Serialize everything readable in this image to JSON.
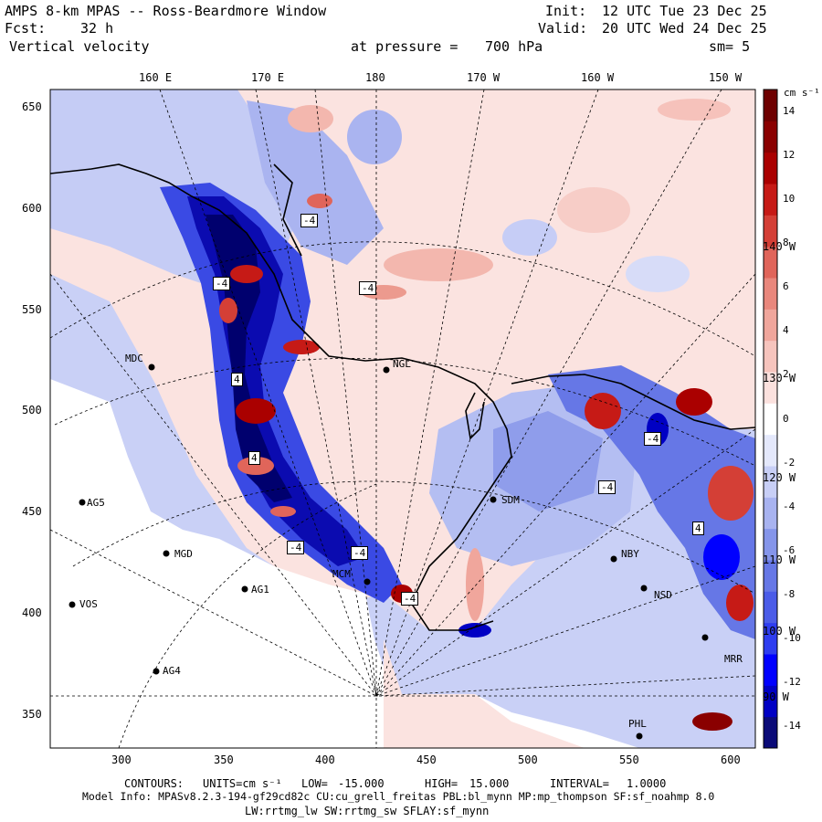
{
  "header": {
    "title": "AMPS 8-km MPAS -- Ross-Beardmore Window",
    "init_label": "Init:",
    "init_value": "12 UTC Tue 23 Dec 25",
    "fcst_label": "Fcst:",
    "fcst_value": "32 h",
    "valid_label": "Valid:",
    "valid_value": "20 UTC Wed 24 Dec 25",
    "field": "Vertical velocity",
    "level_label": "at pressure =",
    "level_value": "700 hPa",
    "smooth": "sm= 5"
  },
  "top_lon_labels": [
    "160 E",
    "170 E",
    "180",
    "170 W",
    "160 W",
    "150 W"
  ],
  "right_lon_labels": [
    "140 W",
    "130 W",
    "120 W",
    "110 W",
    "100 W",
    "90 W"
  ],
  "x_ticks": [
    "300",
    "350",
    "400",
    "450",
    "500",
    "550",
    "600"
  ],
  "y_ticks": [
    "650",
    "600",
    "550",
    "500",
    "450",
    "400",
    "350"
  ],
  "stations": [
    "MDC",
    "NGL",
    "AG5",
    "MGD",
    "VOS",
    "AG1",
    "AG4",
    "SDM",
    "NBY",
    "NSD",
    "MCM",
    "PHL",
    "MRR"
  ],
  "contour_labels": [
    "-4",
    "-4",
    "-4",
    "4",
    "-4",
    "-4",
    "-4",
    "-4",
    "4",
    "-4",
    "4"
  ],
  "colorbar": {
    "unit": "cm s⁻¹",
    "labels": [
      "14",
      "12",
      "10",
      "8",
      "6",
      "4",
      "2",
      "0",
      "-2",
      "-4",
      "-6",
      "-8",
      "-10",
      "-12",
      "-14"
    ],
    "colors": [
      "#0b0b78",
      "#0000c4",
      "#0000ff",
      "#2e3df0",
      "#4b5ce8",
      "#6677e6",
      "#8595ea",
      "#a8b3f0",
      "#c8cff6",
      "#e4e8fb",
      "#ffffff",
      "#fbe1de",
      "#f6c4bd",
      "#f0a69c",
      "#e9877c",
      "#e0655a",
      "#d43f36",
      "#c61a16",
      "#aa0000",
      "#8a0000",
      "#6e0000"
    ]
  },
  "footer": {
    "contours_label": "CONTOURS:",
    "units_label": "UNITS=cm s⁻¹",
    "low_label": "LOW=",
    "low_value": "-15.000",
    "high_label": "HIGH=",
    "high_value": "15.000",
    "interval_label": "INTERVAL=",
    "interval_value": "1.0000",
    "model_info": "Model Info: MPASv8.2.3-194-gf29cd82c CU:cu_grell_freitas PBL:bl_mynn MP:mp_thompson SF:sf_noahmp 8.0",
    "model_info2": "LW:rrtmg_lw SW:rrtmg_sw SFLAY:sf_mynn"
  }
}
